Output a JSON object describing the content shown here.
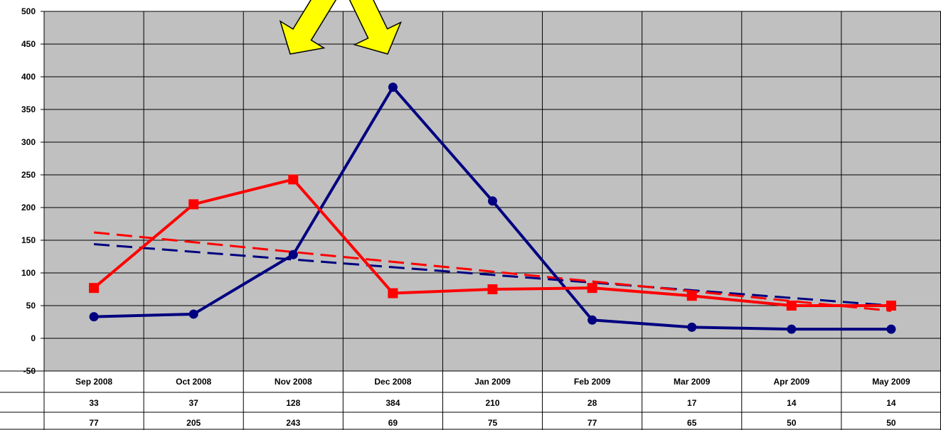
{
  "chart_data": {
    "type": "line",
    "categories": [
      "Sep 2008",
      "Oct 2008",
      "Nov 2008",
      "Dec 2008",
      "Jan 2009",
      "Feb 2009",
      "Mar 2009",
      "Apr 2009",
      "May 2009"
    ],
    "series": [
      {
        "values": [
          33,
          37,
          128,
          384,
          210,
          28,
          17,
          14,
          14
        ],
        "color": "#000080",
        "marker": "circle",
        "trendline": {
          "start": 144,
          "end": 50,
          "color": "#000080"
        }
      },
      {
        "values": [
          77,
          205,
          243,
          69,
          75,
          77,
          65,
          50,
          50
        ],
        "color": "#ff0000",
        "marker": "square",
        "trendline": {
          "start": 162,
          "end": 42,
          "color": "#ff0000"
        }
      }
    ],
    "ylim": [
      -50,
      500
    ],
    "yticks": [
      -50,
      0,
      50,
      100,
      150,
      200,
      250,
      300,
      350,
      400,
      450,
      500
    ],
    "plot_background": "#c0c0c0",
    "grid": true,
    "data_table": true,
    "annotations": [
      {
        "type": "arrow",
        "color": "#ffff00",
        "points_to_category": "Nov 2008"
      },
      {
        "type": "arrow",
        "color": "#ffff00",
        "points_to_category": "Dec 2008"
      }
    ]
  }
}
